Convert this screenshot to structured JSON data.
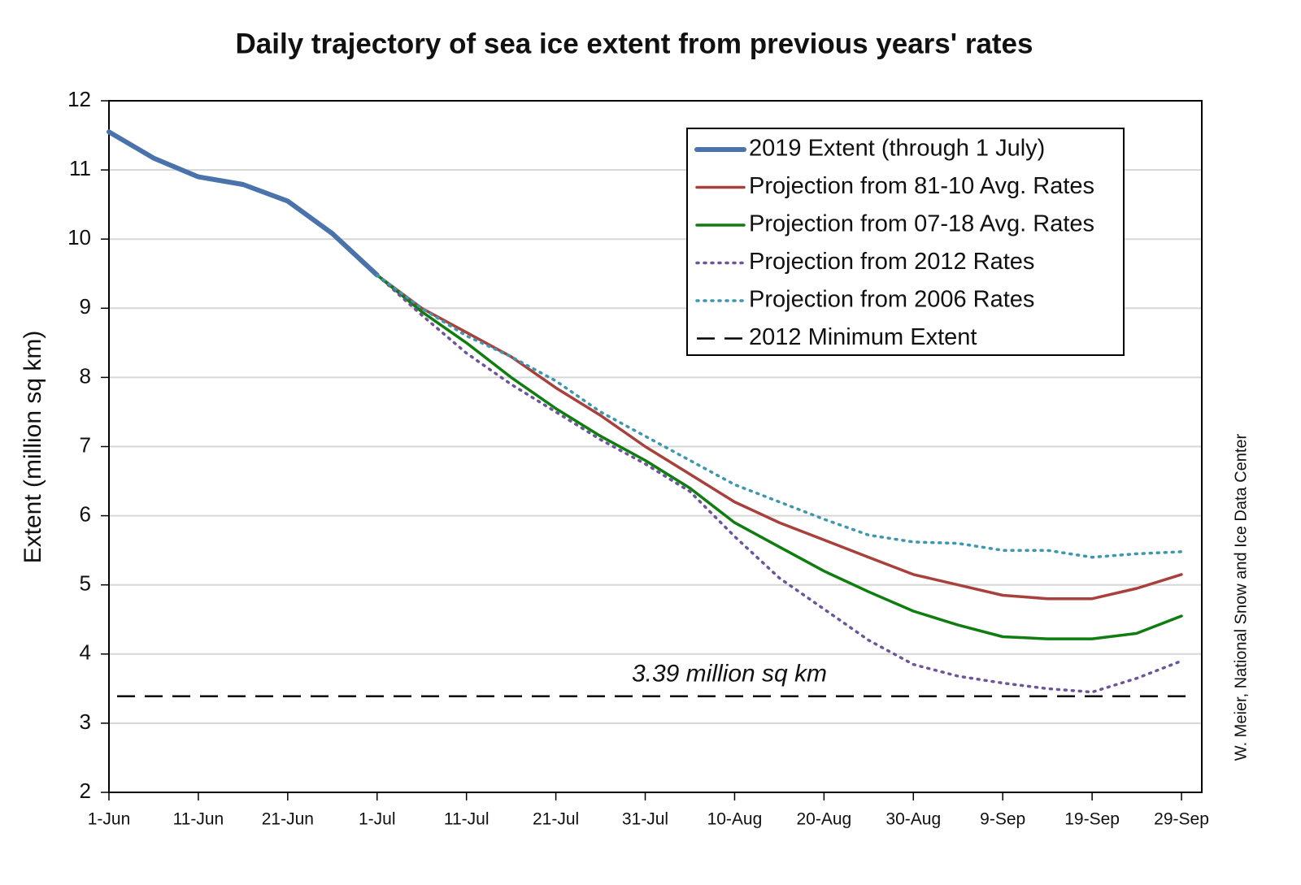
{
  "chart_data": {
    "type": "line",
    "title": "Daily trajectory of sea ice extent from previous years' rates",
    "y_label": "Extent (million sq km)",
    "credit": "W. Meier, National Snow and Ice Data Center",
    "annotation": "3.39 million sq km",
    "categories": [
      "1-Jun",
      null,
      "11-Jun",
      null,
      "21-Jun",
      null,
      "1-Jul",
      null,
      "11-Jul",
      null,
      "21-Jul",
      null,
      "31-Jul",
      null,
      "10-Aug",
      null,
      "20-Aug",
      null,
      "30-Aug",
      null,
      "9-Sep",
      null,
      "19-Sep",
      null,
      "29-Sep"
    ],
    "ylim": [
      2,
      12
    ],
    "yticks": [
      2,
      3,
      4,
      5,
      6,
      7,
      8,
      9,
      10,
      11,
      12
    ],
    "grid": true,
    "legend": "top-right",
    "series": [
      {
        "name": "2019 Extent (through 1 July)",
        "color": "#4a73ab",
        "width": 6,
        "dash": "solid",
        "values": [
          11.55,
          11.17,
          10.9,
          10.79,
          10.55,
          10.08,
          9.48,
          null,
          null,
          null,
          null,
          null,
          null,
          null,
          null,
          null,
          null,
          null,
          null,
          null,
          null,
          null,
          null,
          null,
          null
        ]
      },
      {
        "name": "Projection from 81-10 Avg. Rates",
        "color": "#a8413c",
        "width": 3.5,
        "dash": "solid",
        "values": [
          null,
          null,
          null,
          null,
          null,
          null,
          9.48,
          9.0,
          8.65,
          8.3,
          7.85,
          7.45,
          7.0,
          6.6,
          6.2,
          5.9,
          5.65,
          5.4,
          5.15,
          5.0,
          4.85,
          4.8,
          4.8,
          4.95,
          5.15
        ]
      },
      {
        "name": "Projection from 07-18 Avg. Rates",
        "color": "#0f7d0f",
        "width": 3.5,
        "dash": "solid",
        "values": [
          null,
          null,
          null,
          null,
          null,
          null,
          9.48,
          8.95,
          8.5,
          8.0,
          7.55,
          7.15,
          6.8,
          6.4,
          5.9,
          5.55,
          5.2,
          4.9,
          4.62,
          4.42,
          4.25,
          4.22,
          4.22,
          4.3,
          4.55
        ]
      },
      {
        "name": "Projection from 2012 Rates",
        "color": "#6e5599",
        "width": 3.5,
        "dash": "dotted",
        "values": [
          null,
          null,
          null,
          null,
          null,
          null,
          9.48,
          8.9,
          8.35,
          7.9,
          7.5,
          7.1,
          6.75,
          6.35,
          5.7,
          5.1,
          4.65,
          4.2,
          3.85,
          3.68,
          3.58,
          3.5,
          3.45,
          3.65,
          3.9
        ]
      },
      {
        "name": "Projection from 2006 Rates",
        "color": "#3d97ad",
        "width": 3.5,
        "dash": "dotted",
        "values": [
          null,
          null,
          null,
          null,
          null,
          null,
          9.48,
          9.0,
          8.6,
          8.3,
          7.95,
          7.5,
          7.15,
          6.8,
          6.45,
          6.2,
          5.95,
          5.72,
          5.62,
          5.6,
          5.5,
          5.5,
          5.4,
          5.45,
          5.48
        ]
      },
      {
        "name": "2012 Minimum Extent",
        "color": "#000000",
        "width": 2.5,
        "dash": "dashed",
        "hline": 3.39
      }
    ]
  }
}
